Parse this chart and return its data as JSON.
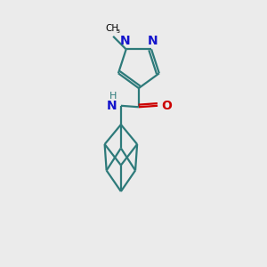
{
  "background_color": "#ebebeb",
  "bond_color": "#2d7a7a",
  "n_color": "#1414cc",
  "o_color": "#cc0000",
  "line_width": 1.6,
  "figsize": [
    3.0,
    3.0
  ],
  "dpi": 100,
  "xlim": [
    0,
    10
  ],
  "ylim": [
    0,
    10
  ]
}
